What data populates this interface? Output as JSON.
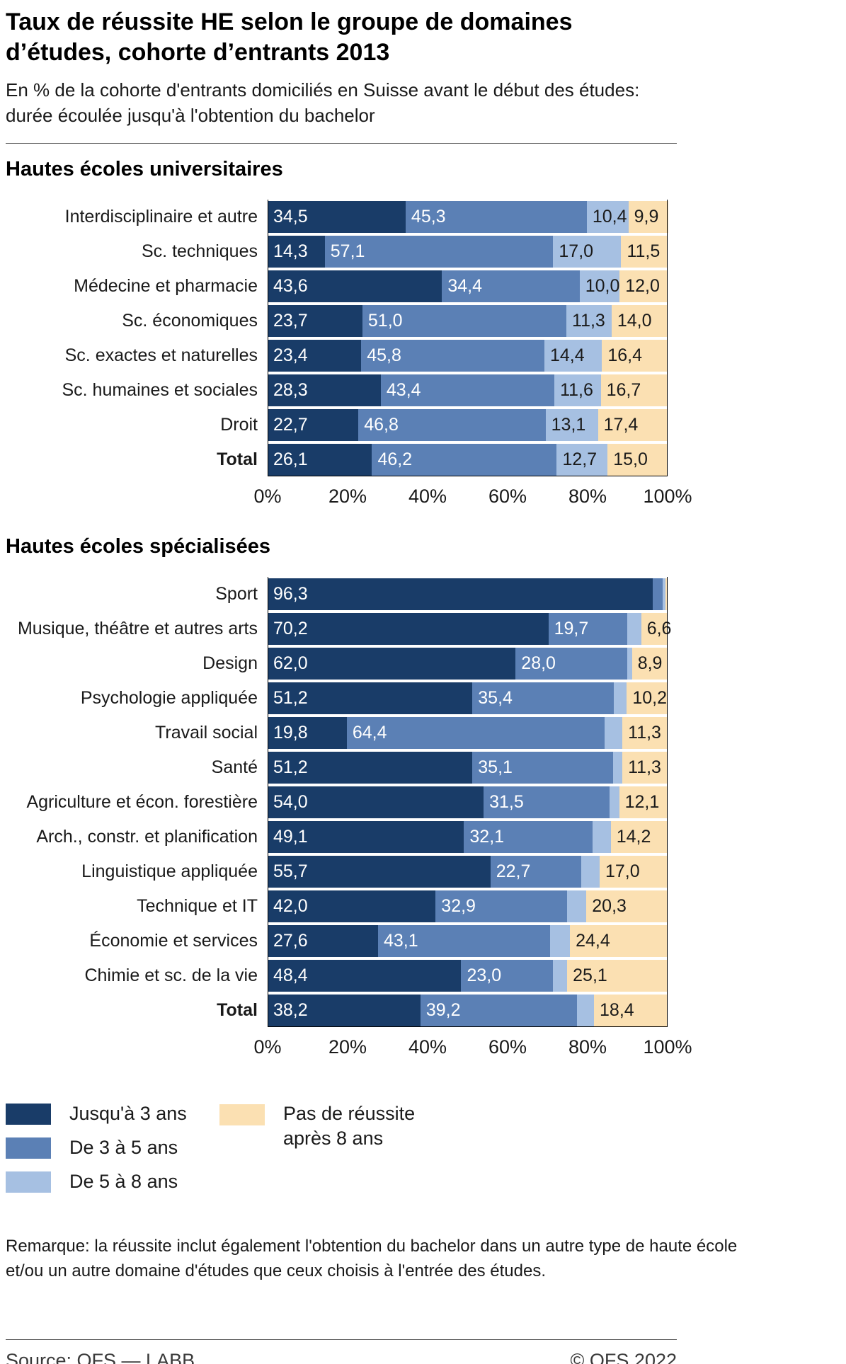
{
  "title": "Taux de réussite HE selon le groupe de domaines\nd’études, cohorte d’entrants 2013",
  "subtitle": "En % de la cohorte d'entrants domiciliés en Suisse avant le début des études:\ndurée écoulée jusqu'à l'obtention du bachelor",
  "colors": {
    "series": [
      "#193c68",
      "#5b80b5",
      "#a6c0e2",
      "#fbe0b2"
    ],
    "axis": "#000000",
    "divider": "#5a5a5a"
  },
  "legend": {
    "items": [
      {
        "label": "Jusqu'à 3 ans"
      },
      {
        "label": "De 3 à 5 ans"
      },
      {
        "label": "De 5 à 8 ans"
      },
      {
        "label": "Pas de réussite\naprès 8 ans"
      }
    ]
  },
  "note": "Remarque: la réussite inclut également l'obtention du bachelor dans un autre type de haute école\net/ou un autre domaine d'études que ceux choisis à l'entrée des études.",
  "footer": {
    "source": "Source: OFS — LABB",
    "copyright": "© OFS 2022"
  },
  "chart_data": [
    {
      "type": "bar",
      "stacked": true,
      "orientation": "horizontal",
      "section_title": "Hautes écoles universitaires",
      "unit": "%",
      "xlim": [
        0,
        100
      ],
      "xticks": [
        "0%",
        "20%",
        "40%",
        "60%",
        "80%",
        "100%"
      ],
      "series_names": [
        "Jusqu'à 3 ans",
        "De 3 à 5 ans",
        "De 5 à 8 ans",
        "Pas de réussite après 8 ans"
      ],
      "rows": [
        {
          "label": "Interdisciplinaire et autre",
          "bold": false,
          "values": [
            34.5,
            45.3,
            10.4,
            9.9
          ],
          "segment_labels": [
            "34,5",
            "45,3",
            "10,4",
            "9,9"
          ]
        },
        {
          "label": "Sc. techniques",
          "bold": false,
          "values": [
            14.3,
            57.1,
            17.0,
            11.5
          ],
          "segment_labels": [
            "14,3",
            "57,1",
            "17,0",
            "11,5"
          ]
        },
        {
          "label": "Médecine et pharmacie",
          "bold": false,
          "values": [
            43.6,
            34.4,
            10.0,
            12.0
          ],
          "segment_labels": [
            "43,6",
            "34,4",
            "10,0",
            "12,0"
          ]
        },
        {
          "label": "Sc. économiques",
          "bold": false,
          "values": [
            23.7,
            51.0,
            11.3,
            14.0
          ],
          "segment_labels": [
            "23,7",
            "51,0",
            "11,3",
            "14,0"
          ]
        },
        {
          "label": "Sc. exactes et naturelles",
          "bold": false,
          "values": [
            23.4,
            45.8,
            14.4,
            16.4
          ],
          "segment_labels": [
            "23,4",
            "45,8",
            "14,4",
            "16,4"
          ]
        },
        {
          "label": "Sc. humaines et sociales",
          "bold": false,
          "values": [
            28.3,
            43.4,
            11.6,
            16.7
          ],
          "segment_labels": [
            "28,3",
            "43,4",
            "11,6",
            "16,7"
          ]
        },
        {
          "label": "Droit",
          "bold": false,
          "values": [
            22.7,
            46.8,
            13.1,
            17.4
          ],
          "segment_labels": [
            "22,7",
            "46,8",
            "13,1",
            "17,4"
          ]
        },
        {
          "label": "Total",
          "bold": true,
          "values": [
            26.1,
            46.2,
            12.7,
            15.0
          ],
          "segment_labels": [
            "26,1",
            "46,2",
            "12,7",
            "15,0"
          ]
        }
      ]
    },
    {
      "type": "bar",
      "stacked": true,
      "orientation": "horizontal",
      "section_title": "Hautes écoles spécialisées",
      "unit": "%",
      "xlim": [
        0,
        100
      ],
      "xticks": [
        "0%",
        "20%",
        "40%",
        "60%",
        "80%",
        "100%"
      ],
      "series_names": [
        "Jusqu'à 3 ans",
        "De 3 à 5 ans",
        "De 5 à 8 ans",
        "Pas de réussite après 8 ans"
      ],
      "rows": [
        {
          "label": "Sport",
          "bold": false,
          "values": [
            96.3,
            2.4,
            0.8,
            0.5
          ],
          "segment_labels": [
            "96,3",
            "",
            "",
            ""
          ]
        },
        {
          "label": "Musique, théâtre et autres arts",
          "bold": false,
          "values": [
            70.2,
            19.7,
            3.5,
            6.6
          ],
          "segment_labels": [
            "70,2",
            "19,7",
            "",
            "6,6"
          ]
        },
        {
          "label": "Design",
          "bold": false,
          "values": [
            62.0,
            28.0,
            1.1,
            8.9
          ],
          "segment_labels": [
            "62,0",
            "28,0",
            "",
            "8,9"
          ]
        },
        {
          "label": "Psychologie appliquée",
          "bold": false,
          "values": [
            51.2,
            35.4,
            3.2,
            10.2
          ],
          "segment_labels": [
            "51,2",
            "35,4",
            "",
            "10,2"
          ]
        },
        {
          "label": "Travail social",
          "bold": false,
          "values": [
            19.8,
            64.4,
            4.5,
            11.3
          ],
          "segment_labels": [
            "19,8",
            "64,4",
            "",
            "11,3"
          ]
        },
        {
          "label": "Santé",
          "bold": false,
          "values": [
            51.2,
            35.1,
            2.4,
            11.3
          ],
          "segment_labels": [
            "51,2",
            "35,1",
            "",
            "11,3"
          ]
        },
        {
          "label": "Agriculture et écon. forestière",
          "bold": false,
          "values": [
            54.0,
            31.5,
            2.4,
            12.1
          ],
          "segment_labels": [
            "54,0",
            "31,5",
            "",
            "12,1"
          ]
        },
        {
          "label": "Arch., constr. et planification",
          "bold": false,
          "values": [
            49.1,
            32.1,
            4.6,
            14.2
          ],
          "segment_labels": [
            "49,1",
            "32,1",
            "",
            "14,2"
          ]
        },
        {
          "label": "Linguistique appliquée",
          "bold": false,
          "values": [
            55.7,
            22.7,
            4.6,
            17.0
          ],
          "segment_labels": [
            "55,7",
            "22,7",
            "",
            "17,0"
          ]
        },
        {
          "label": "Technique et IT",
          "bold": false,
          "values": [
            42.0,
            32.9,
            4.8,
            20.3
          ],
          "segment_labels": [
            "42,0",
            "32,9",
            "",
            "20,3"
          ]
        },
        {
          "label": "Économie et services",
          "bold": false,
          "values": [
            27.6,
            43.1,
            4.9,
            24.4
          ],
          "segment_labels": [
            "27,6",
            "43,1",
            "",
            "24,4"
          ]
        },
        {
          "label": "Chimie et sc. de la vie",
          "bold": false,
          "values": [
            48.4,
            23.0,
            3.5,
            25.1
          ],
          "segment_labels": [
            "48,4",
            "23,0",
            "",
            "25,1"
          ]
        },
        {
          "label": "Total",
          "bold": true,
          "values": [
            38.2,
            39.2,
            4.2,
            18.4
          ],
          "segment_labels": [
            "38,2",
            "39,2",
            "",
            "18,4"
          ]
        }
      ]
    }
  ]
}
